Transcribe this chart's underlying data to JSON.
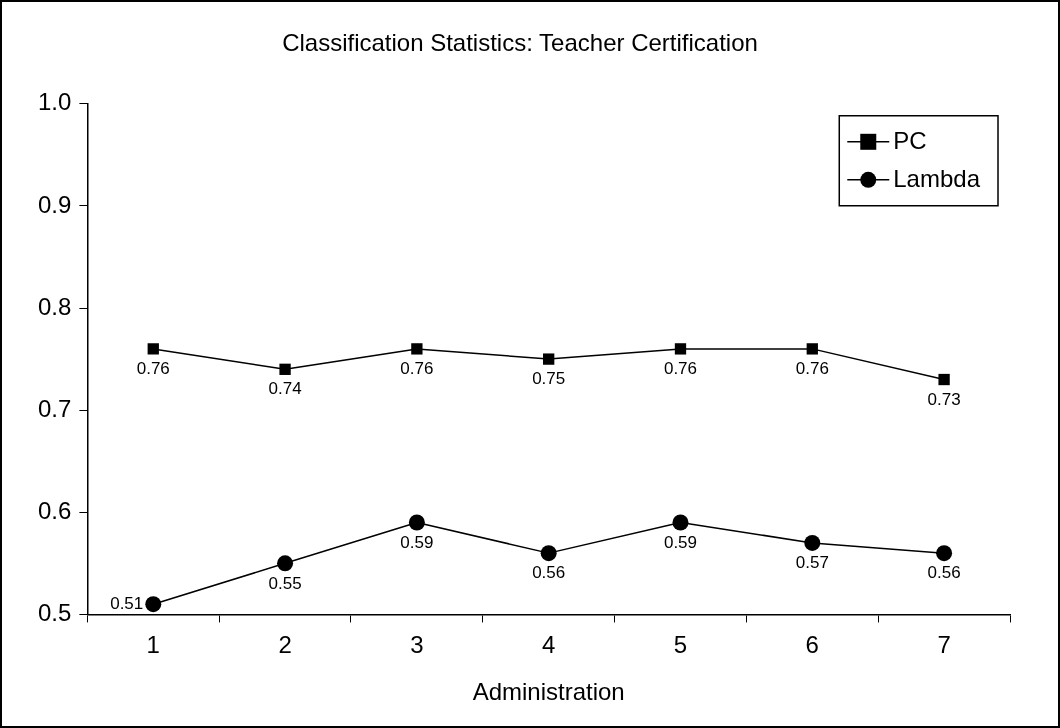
{
  "chart_data": {
    "type": "line",
    "title": "Classification Statistics: Teacher Certification",
    "xlabel": "Administration",
    "categories": [
      "1",
      "2",
      "3",
      "4",
      "5",
      "6",
      "7"
    ],
    "series": [
      {
        "name": "PC",
        "color": "#000000",
        "marker": "square",
        "values": [
          0.76,
          0.74,
          0.76,
          0.75,
          0.76,
          0.76,
          0.73
        ]
      },
      {
        "name": "Lambda",
        "color": "#000000",
        "marker": "circle",
        "values": [
          0.51,
          0.55,
          0.59,
          0.56,
          0.59,
          0.57,
          0.56
        ]
      }
    ],
    "ylim": [
      0.5,
      1.0
    ],
    "yticks": [
      {
        "value": 0.5,
        "label": "0.5"
      },
      {
        "value": 0.6,
        "label": "0.6"
      },
      {
        "value": 0.7,
        "label": "0.7"
      },
      {
        "value": 0.8,
        "label": "0.8"
      },
      {
        "value": 0.9,
        "label": "0.9"
      },
      {
        "value": 1.0,
        "label": "1.0"
      }
    ],
    "grid": false,
    "legend": "top right",
    "data_labels": true
  }
}
